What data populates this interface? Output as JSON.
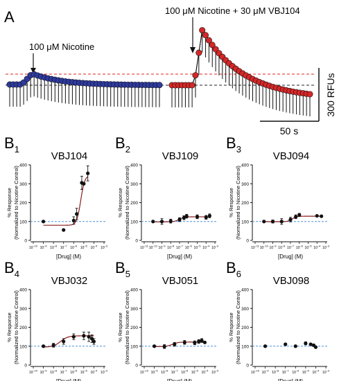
{
  "panel_a": {
    "label": "A",
    "left_annotation": "100 μM Nicotine",
    "right_annotation": "100 μM Nicotine + 30 μM VBJ104",
    "scale_y": "300 RFUs",
    "scale_x": "50 s",
    "colors": {
      "left_trace": "#2e3a9f",
      "right_trace": "#d62728",
      "red_line": "#e02020",
      "black_line": "#222222"
    }
  },
  "chart_data": [
    {
      "type": "scatter",
      "panel": "B1",
      "letter": "B",
      "subscript": "1",
      "title": "VBJ104",
      "ylabel": [
        "% Response",
        "(Normalized to Nicotine Control)"
      ],
      "xlabel": "[Drug] (M)",
      "x_exp_min": -10,
      "x_exp_max": -3,
      "ylim": [
        0,
        400
      ],
      "yticks": [
        0,
        100,
        200,
        300,
        400
      ],
      "baseline": 100,
      "points": [
        {
          "logx": -9,
          "y": 100,
          "err": 0
        },
        {
          "logx": -7,
          "y": 55,
          "err": 0
        },
        {
          "logx": -6,
          "y": 105,
          "err": 20
        },
        {
          "logx": -5.7,
          "y": 140,
          "err": 30
        },
        {
          "logx": -5.2,
          "y": 305,
          "err": 35
        },
        {
          "logx": -5,
          "y": 300,
          "err": 0
        },
        {
          "logx": -4.6,
          "y": 355,
          "err": 40
        }
      ],
      "fit": {
        "bottom": 80,
        "top": 345,
        "logec50": -5.3,
        "hill": 2.2
      }
    },
    {
      "type": "scatter",
      "panel": "B2",
      "letter": "B",
      "subscript": "2",
      "title": "VBJ109",
      "ylabel": [
        "% Response",
        "(Normalized to Nicotine Control)"
      ],
      "xlabel": "[Drug] (M)",
      "x_exp_min": -11,
      "x_exp_max": -3,
      "ylim": [
        0,
        400
      ],
      "yticks": [
        0,
        100,
        200,
        300,
        400
      ],
      "baseline": 100,
      "points": [
        {
          "logx": -10,
          "y": 100,
          "err": 0
        },
        {
          "logx": -9,
          "y": 100,
          "err": 15
        },
        {
          "logx": -8,
          "y": 102,
          "err": 10
        },
        {
          "logx": -7,
          "y": 110,
          "err": 10
        },
        {
          "logx": -6.5,
          "y": 120,
          "err": 10
        },
        {
          "logx": -6.2,
          "y": 128,
          "err": 10
        },
        {
          "logx": -5,
          "y": 125,
          "err": 10
        },
        {
          "logx": -4,
          "y": 122,
          "err": 10
        },
        {
          "logx": -3.6,
          "y": 130,
          "err": 10
        }
      ],
      "fit": {
        "bottom": 98,
        "top": 125,
        "logec50": -7,
        "hill": 1.5
      }
    },
    {
      "type": "scatter",
      "panel": "B3",
      "letter": "B",
      "subscript": "3",
      "title": "VBJ094",
      "ylabel": [
        "% Response",
        "(Normalized to Nicotine Control)"
      ],
      "xlabel": "[Drug] (M)",
      "x_exp_min": -11,
      "x_exp_max": -3,
      "ylim": [
        0,
        400
      ],
      "yticks": [
        0,
        100,
        200,
        300,
        400
      ],
      "baseline": 100,
      "points": [
        {
          "logx": -10,
          "y": 100,
          "err": 0
        },
        {
          "logx": -9,
          "y": 100,
          "err": 8
        },
        {
          "logx": -8,
          "y": 100,
          "err": 15
        },
        {
          "logx": -7,
          "y": 110,
          "err": 12
        },
        {
          "logx": -6.4,
          "y": 125,
          "err": 10
        },
        {
          "logx": -6,
          "y": 135,
          "err": 8
        },
        {
          "logx": -4,
          "y": 130,
          "err": 0
        },
        {
          "logx": -3.5,
          "y": 128,
          "err": 0
        }
      ],
      "fit": {
        "bottom": 99,
        "top": 128,
        "logec50": -6.8,
        "hill": 1.8
      }
    },
    {
      "type": "scatter",
      "panel": "B4",
      "letter": "B",
      "subscript": "4",
      "title": "VBJ032",
      "ylabel": [
        "% Response",
        "(Normalized to Nicotine Control)"
      ],
      "xlabel": "[Drug] (M)",
      "x_exp_min": -10,
      "x_exp_max": -3,
      "ylim": [
        0,
        400
      ],
      "yticks": [
        0,
        100,
        200,
        300,
        400
      ],
      "baseline": 100,
      "points": [
        {
          "logx": -9,
          "y": 100,
          "err": 0
        },
        {
          "logx": -8,
          "y": 105,
          "err": 10
        },
        {
          "logx": -7,
          "y": 125,
          "err": 15
        },
        {
          "logx": -6,
          "y": 150,
          "err": 15
        },
        {
          "logx": -5,
          "y": 155,
          "err": 20
        },
        {
          "logx": -4.5,
          "y": 150,
          "err": 25
        },
        {
          "logx": -4.2,
          "y": 140,
          "err": 20
        },
        {
          "logx": -4,
          "y": 125,
          "err": 15
        }
      ],
      "fit": {
        "bottom": 95,
        "top": 155,
        "logec50": -7.3,
        "hill": 1.2
      }
    },
    {
      "type": "scatter",
      "panel": "B5",
      "letter": "B",
      "subscript": "5",
      "title": "VBJ051",
      "ylabel": [
        "% Response",
        "(Normalized to Nicotine Control)"
      ],
      "xlabel": "[Drug] (M)",
      "x_exp_min": -10,
      "x_exp_max": -3,
      "ylim": [
        0,
        400
      ],
      "yticks": [
        0,
        100,
        200,
        300,
        400
      ],
      "baseline": 100,
      "points": [
        {
          "logx": -9,
          "y": 100,
          "err": 0
        },
        {
          "logx": -8,
          "y": 98,
          "err": 10
        },
        {
          "logx": -7,
          "y": 110,
          "err": 10
        },
        {
          "logx": -6,
          "y": 120,
          "err": 10
        },
        {
          "logx": -5,
          "y": 118,
          "err": 10
        },
        {
          "logx": -4.6,
          "y": 125,
          "err": 10
        },
        {
          "logx": -4.3,
          "y": 130,
          "err": 10
        },
        {
          "logx": -4,
          "y": 120,
          "err": 0
        }
      ],
      "fit": {
        "bottom": 98,
        "top": 122,
        "logec50": -7.2,
        "hill": 1.5
      }
    },
    {
      "type": "scatter",
      "panel": "B6",
      "letter": "B",
      "subscript": "6",
      "title": "VBJ098",
      "ylabel": [
        "% Response",
        "(Normalized to Nicotine Control)"
      ],
      "xlabel": "[Drug] (M)",
      "x_exp_min": -10,
      "x_exp_max": -3,
      "ylim": [
        0,
        400
      ],
      "yticks": [
        0,
        100,
        200,
        300,
        400
      ],
      "baseline": 100,
      "points": [
        {
          "logx": -9,
          "y": 100,
          "err": 0
        },
        {
          "logx": -7,
          "y": 110,
          "err": 5
        },
        {
          "logx": -6,
          "y": 100,
          "err": 5
        },
        {
          "logx": -5,
          "y": 115,
          "err": 8
        },
        {
          "logx": -4.5,
          "y": 110,
          "err": 5
        },
        {
          "logx": -4.2,
          "y": 105,
          "err": 5
        },
        {
          "logx": -4,
          "y": 95,
          "err": 0
        }
      ],
      "fit": null
    }
  ],
  "colors": {
    "fit_line": "#8b1a1a",
    "baseline": "#4a90d9",
    "point": "#111111"
  }
}
